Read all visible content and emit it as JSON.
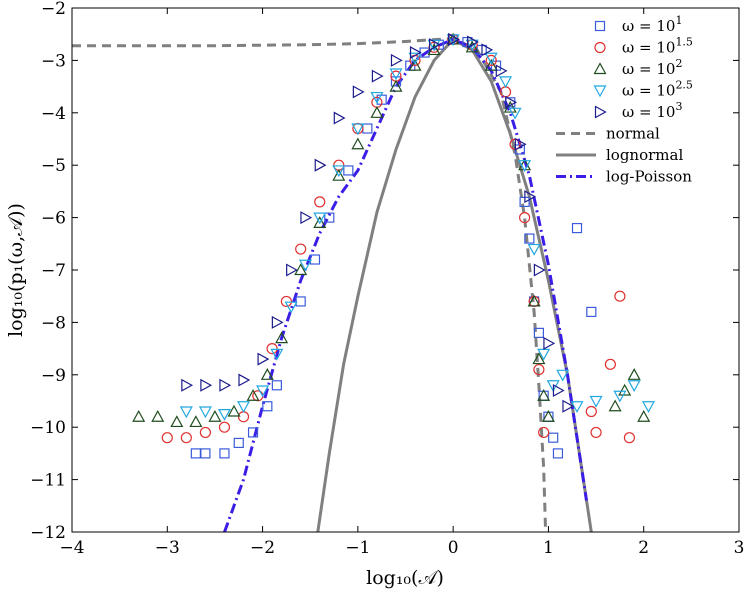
{
  "chart_data": {
    "type": "scatter",
    "xlabel": "log₁₀(𝒜)",
    "ylabel": "log₁₀(p₁(ω,𝒜))",
    "xlim": [
      -4,
      3
    ],
    "ylim": [
      -12,
      -2
    ],
    "xticks": [
      "−4",
      "−3",
      "−2",
      "−1",
      "0",
      "1",
      "2",
      "3"
    ],
    "yticks": [
      "−12",
      "−11",
      "−10",
      "−9",
      "−8",
      "−7",
      "−6",
      "−5",
      "−4",
      "−3",
      "−2"
    ],
    "grid": false,
    "legend_position": "top-right",
    "series": [
      {
        "name": "ω = 10^1",
        "label_base": "ω = 10",
        "label_exp": "1",
        "marker": "square",
        "color": "#3b5bdb",
        "x": [
          -2.7,
          -2.6,
          -2.4,
          -2.25,
          -2.1,
          -1.95,
          -1.85,
          -1.6,
          -1.45,
          -1.3,
          -1.1,
          -0.9,
          -0.75,
          -0.6,
          -0.45,
          -0.3,
          -0.15,
          0.0,
          0.15,
          0.3,
          0.45,
          0.6,
          0.7,
          0.75,
          0.8,
          0.85,
          0.9,
          0.95,
          1.0,
          1.05,
          1.1,
          1.3,
          1.45
        ],
        "y": [
          -10.5,
          -10.5,
          -10.5,
          -10.3,
          -10.1,
          -9.6,
          -9.2,
          -7.6,
          -6.8,
          -6.0,
          -5.1,
          -4.3,
          -3.75,
          -3.4,
          -3.1,
          -2.85,
          -2.7,
          -2.6,
          -2.65,
          -2.8,
          -3.1,
          -3.8,
          -4.7,
          -5.7,
          -6.4,
          -7.6,
          -8.2,
          -9.4,
          -9.8,
          -10.2,
          -10.5,
          -6.2,
          -7.8
        ]
      },
      {
        "name": "ω = 10^1.5",
        "label_base": "ω = 10",
        "label_exp": "1.5",
        "marker": "circle",
        "color": "#e03131",
        "x": [
          -3.0,
          -2.8,
          -2.6,
          -2.4,
          -2.2,
          -2.05,
          -1.9,
          -1.75,
          -1.6,
          -1.4,
          -1.2,
          -1.0,
          -0.8,
          -0.6,
          -0.4,
          -0.2,
          0.0,
          0.2,
          0.4,
          0.55,
          0.65,
          0.75,
          0.85,
          0.9,
          0.95,
          1.45,
          1.5,
          1.65,
          1.75,
          1.85
        ],
        "y": [
          -10.2,
          -10.2,
          -10.1,
          -10.0,
          -9.8,
          -9.4,
          -8.5,
          -7.6,
          -6.6,
          -5.7,
          -5.0,
          -4.3,
          -3.8,
          -3.3,
          -3.0,
          -2.75,
          -2.6,
          -2.7,
          -3.0,
          -3.6,
          -4.6,
          -6.0,
          -7.6,
          -8.9,
          -10.1,
          -9.7,
          -10.1,
          -8.8,
          -7.5,
          -10.2
        ]
      },
      {
        "name": "ω = 10^2",
        "label_base": "ω = 10",
        "label_exp": "2",
        "marker": "triangle-up",
        "color": "#1f4d1f",
        "x": [
          -3.3,
          -3.1,
          -2.9,
          -2.7,
          -2.5,
          -2.3,
          -2.1,
          -1.95,
          -1.8,
          -1.6,
          -1.4,
          -1.2,
          -1.0,
          -0.8,
          -0.6,
          -0.4,
          -0.2,
          0.0,
          0.2,
          0.4,
          0.6,
          0.75,
          0.85,
          0.9,
          0.95,
          1.0,
          1.7,
          1.8,
          1.9,
          2.0
        ],
        "y": [
          -9.8,
          -9.8,
          -9.9,
          -9.9,
          -9.8,
          -9.7,
          -9.4,
          -9.0,
          -8.3,
          -7.0,
          -6.1,
          -5.2,
          -4.6,
          -4.0,
          -3.5,
          -3.1,
          -2.8,
          -2.6,
          -2.75,
          -3.1,
          -3.9,
          -5.0,
          -7.6,
          -8.7,
          -9.4,
          -9.8,
          -9.6,
          -9.3,
          -9.0,
          -9.8
        ]
      },
      {
        "name": "ω = 10^2.5",
        "label_base": "ω = 10",
        "label_exp": "2.5",
        "marker": "triangle-down",
        "color": "#22a7e0",
        "x": [
          -2.8,
          -2.6,
          -2.4,
          -2.2,
          -2.0,
          -1.85,
          -1.7,
          -1.55,
          -1.4,
          -1.2,
          -1.0,
          -0.8,
          -0.6,
          -0.4,
          -0.2,
          0.0,
          0.2,
          0.4,
          0.55,
          0.65,
          0.75,
          0.85,
          0.95,
          1.05,
          1.15,
          1.3,
          1.5,
          1.75,
          1.9,
          2.05
        ],
        "y": [
          -9.7,
          -9.7,
          -9.75,
          -9.6,
          -9.3,
          -8.6,
          -7.7,
          -6.9,
          -6.0,
          -5.1,
          -4.3,
          -3.7,
          -3.25,
          -2.95,
          -2.7,
          -2.6,
          -2.7,
          -2.95,
          -3.4,
          -4.0,
          -5.0,
          -6.6,
          -8.6,
          -9.2,
          -9.0,
          -9.6,
          -9.5,
          -9.4,
          -9.2,
          -9.6
        ]
      },
      {
        "name": "ω = 10^3",
        "label_base": "ω = 10",
        "label_exp": "3",
        "marker": "triangle-right",
        "color": "#1c1c8c",
        "x": [
          -2.8,
          -2.6,
          -2.4,
          -2.2,
          -2.0,
          -1.85,
          -1.7,
          -1.55,
          -1.4,
          -1.2,
          -1.0,
          -0.8,
          -0.6,
          -0.4,
          -0.2,
          0.0,
          0.2,
          0.35,
          0.5,
          0.6,
          0.7,
          0.8,
          0.9,
          1.0,
          1.1,
          1.2
        ],
        "y": [
          -9.2,
          -9.2,
          -9.2,
          -9.1,
          -8.7,
          -8.0,
          -7.0,
          -6.0,
          -5.0,
          -4.1,
          -3.6,
          -3.3,
          -3.0,
          -2.85,
          -2.7,
          -2.6,
          -2.65,
          -2.8,
          -3.2,
          -3.8,
          -4.6,
          -5.6,
          -7.0,
          -8.4,
          -9.3,
          -9.6
        ]
      }
    ],
    "reference_curves": [
      {
        "name": "normal",
        "style": "dashed",
        "color": "#808080",
        "x": [
          -4.0,
          -3.5,
          -3.0,
          -2.5,
          -2.0,
          -1.5,
          -1.0,
          -0.5,
          0.0,
          0.25,
          0.5,
          0.65,
          0.75,
          0.85,
          0.9,
          0.95,
          0.97
        ],
        "y": [
          -2.72,
          -2.72,
          -2.72,
          -2.72,
          -2.71,
          -2.7,
          -2.68,
          -2.64,
          -2.58,
          -2.8,
          -3.6,
          -4.8,
          -6.0,
          -7.8,
          -9.2,
          -10.8,
          -12.0
        ]
      },
      {
        "name": "lognormal",
        "style": "solid",
        "color": "#808080",
        "x": [
          -1.42,
          -1.3,
          -1.15,
          -1.0,
          -0.8,
          -0.6,
          -0.4,
          -0.2,
          0.0,
          0.2,
          0.4,
          0.6,
          0.8,
          1.0,
          1.2,
          1.35,
          1.45
        ],
        "y": [
          -12.0,
          -10.5,
          -8.8,
          -7.5,
          -5.9,
          -4.7,
          -3.7,
          -3.0,
          -2.6,
          -2.8,
          -3.4,
          -4.4,
          -5.6,
          -7.2,
          -9.0,
          -10.8,
          -12.0
        ]
      },
      {
        "name": "log-Poisson",
        "style": "dashdot",
        "color": "#3b1ee6",
        "x": [
          -2.4,
          -2.2,
          -2.0,
          -1.8,
          -1.6,
          -1.4,
          -1.2,
          -1.0,
          -0.8,
          -0.6,
          -0.4,
          -0.2,
          0.0,
          0.2,
          0.4,
          0.6,
          0.8,
          1.0,
          1.2,
          1.4
        ],
        "y": [
          -12.0,
          -11.0,
          -9.6,
          -8.3,
          -7.2,
          -6.3,
          -5.6,
          -5.1,
          -4.3,
          -3.5,
          -3.0,
          -2.75,
          -2.6,
          -2.75,
          -3.2,
          -4.0,
          -5.2,
          -6.9,
          -9.0,
          -11.4
        ]
      }
    ]
  }
}
